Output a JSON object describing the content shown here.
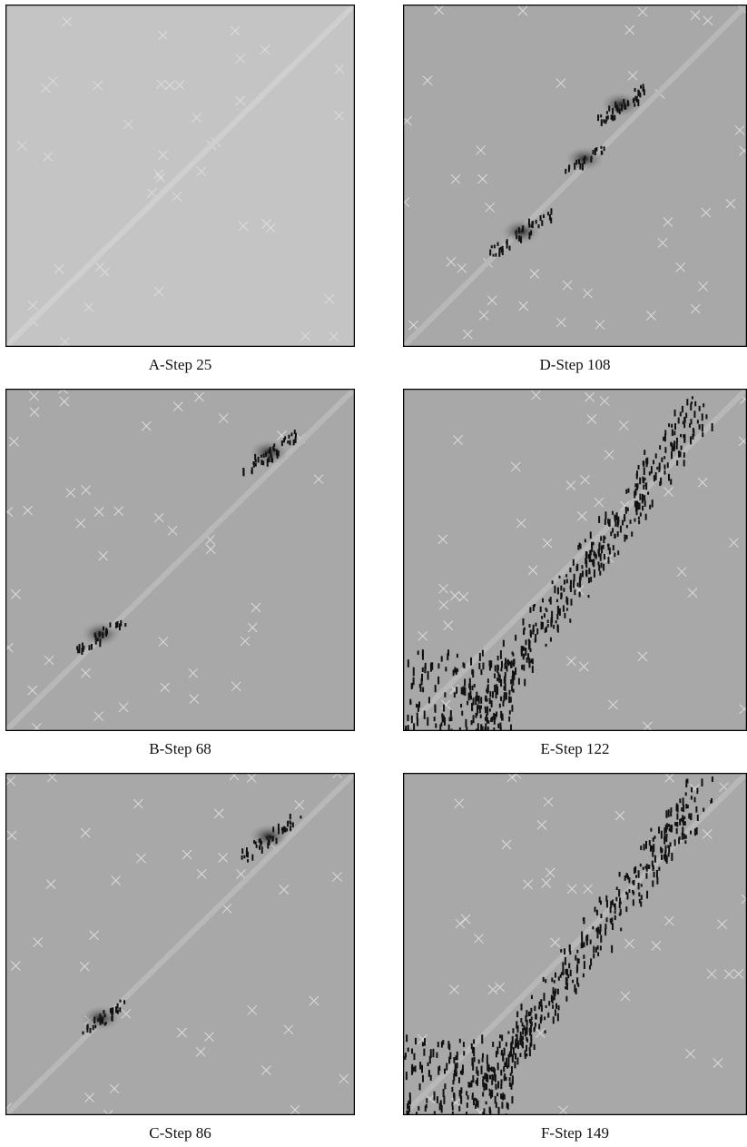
{
  "panels": [
    {
      "caption": "A-Step 25"
    },
    {
      "caption": "B-Step 68"
    },
    {
      "caption": "C-Step 86"
    },
    {
      "caption": "D-Step 108"
    },
    {
      "caption": "E-Step 122"
    },
    {
      "caption": "F-Step 149"
    }
  ]
}
